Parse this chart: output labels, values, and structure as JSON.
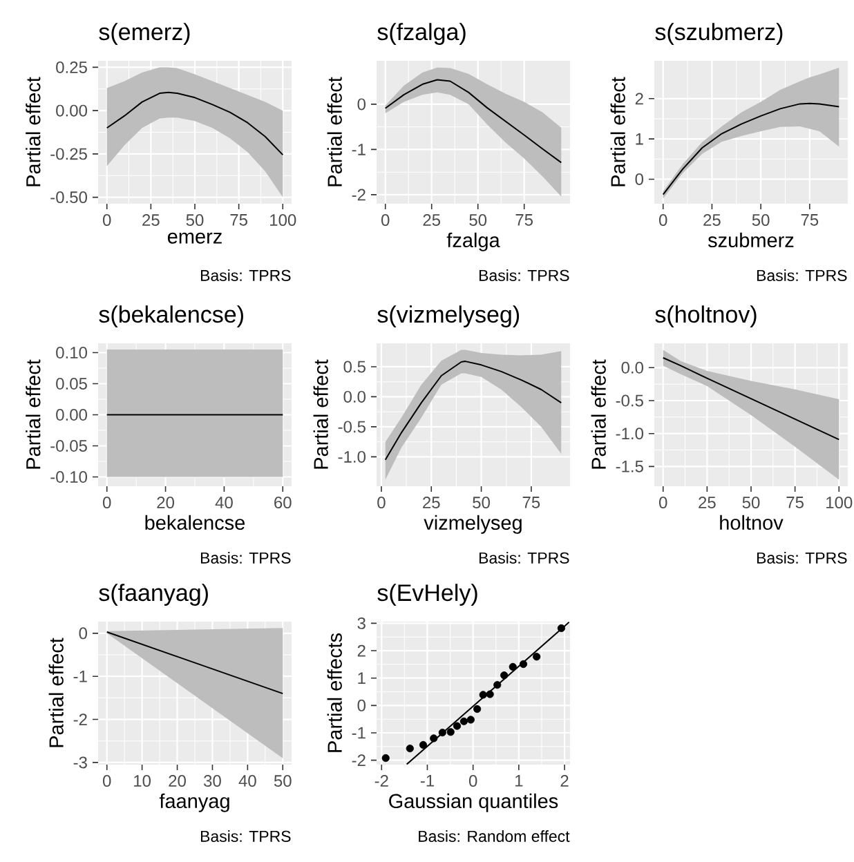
{
  "chart_data": [
    {
      "type": "line",
      "title": "s(emerz)",
      "xlabel": "emerz",
      "ylabel": "Partial effect",
      "annotations": [
        "Basis: TPRS"
      ],
      "xlim": [
        -5,
        105
      ],
      "ylim": [
        -0.5375,
        0.2875
      ],
      "xticks": [
        0,
        25,
        50,
        75,
        100
      ],
      "yticks": [
        {
          "value": -0.5,
          "label": "-0.50"
        },
        -0.25,
        {
          "value": 0,
          "label": "0.00"
        },
        0.25
      ],
      "grid": true,
      "series": [
        {
          "color": "#000000",
          "x": [
            0,
            10,
            20,
            30,
            35,
            40,
            50,
            60,
            70,
            80,
            90,
            100
          ],
          "values": [
            -0.1,
            -0.03,
            0.05,
            0.1,
            0.105,
            0.1,
            0.075,
            0.035,
            -0.01,
            -0.07,
            -0.15,
            -0.255
          ],
          "upper": [
            0.13,
            0.17,
            0.22,
            0.25,
            0.25,
            0.245,
            0.21,
            0.17,
            0.13,
            0.09,
            0.05,
            0.0
          ],
          "lower": [
            -0.32,
            -0.2,
            -0.1,
            -0.045,
            -0.04,
            -0.04,
            -0.06,
            -0.1,
            -0.16,
            -0.24,
            -0.35,
            -0.5
          ]
        }
      ]
    },
    {
      "type": "line",
      "title": "s(fzalga)",
      "xlabel": "fzalga",
      "ylabel": "Partial effect",
      "annotations": [
        "Basis: TPRS"
      ],
      "xlim": [
        -4.75,
        99.75
      ],
      "ylim": [
        -2.2,
        0.96
      ],
      "xticks": [
        0,
        25,
        50,
        75
      ],
      "yticks": [
        -2,
        -1,
        0
      ],
      "grid": true,
      "series": [
        {
          "color": "#000000",
          "x": [
            0,
            10,
            20,
            28,
            35,
            45,
            55,
            65,
            75,
            85,
            95
          ],
          "values": [
            -0.09,
            0.21,
            0.44,
            0.54,
            0.51,
            0.26,
            -0.08,
            -0.38,
            -0.68,
            -0.99,
            -1.29
          ],
          "upper": [
            -0.03,
            0.41,
            0.7,
            0.81,
            0.8,
            0.67,
            0.44,
            0.23,
            0.05,
            -0.18,
            -0.52
          ],
          "lower": [
            -0.2,
            0.05,
            0.21,
            0.26,
            0.21,
            0.0,
            -0.45,
            -0.85,
            -1.2,
            -1.6,
            -2.04
          ]
        }
      ]
    },
    {
      "type": "line",
      "title": "s(szubmerz)",
      "xlabel": "szubmerz",
      "ylabel": "Partial effect",
      "annotations": [
        "Basis: TPRS"
      ],
      "xlim": [
        -4.5,
        94.5
      ],
      "ylim": [
        -0.61,
        2.94
      ],
      "xticks": [
        0,
        25,
        50,
        75
      ],
      "yticks": [
        0,
        1,
        2
      ],
      "grid": true,
      "series": [
        {
          "color": "#000000",
          "x": [
            0,
            10,
            20,
            30,
            40,
            50,
            60,
            70,
            75,
            80,
            90
          ],
          "values": [
            -0.38,
            0.25,
            0.78,
            1.13,
            1.37,
            1.57,
            1.75,
            1.87,
            1.88,
            1.87,
            1.8
          ],
          "upper": [
            -0.3,
            0.37,
            0.92,
            1.31,
            1.66,
            1.92,
            2.22,
            2.43,
            2.53,
            2.6,
            2.77
          ],
          "lower": [
            -0.48,
            0.15,
            0.63,
            0.93,
            1.07,
            1.19,
            1.3,
            1.31,
            1.25,
            1.19,
            0.81
          ]
        }
      ]
    },
    {
      "type": "line",
      "title": "s(bekalencse)",
      "xlabel": "bekalencse",
      "ylabel": "Partial effect",
      "annotations": [
        "Basis: TPRS"
      ],
      "xlim": [
        -3,
        63
      ],
      "ylim": [
        -0.115,
        0.115
      ],
      "xticks": [
        0,
        20,
        40,
        60
      ],
      "yticks": [
        {
          "value": -0.1,
          "label": "-0.10"
        },
        -0.05,
        {
          "value": 0,
          "label": "0.00"
        },
        0.05,
        {
          "value": 0.1,
          "label": "0.10"
        }
      ],
      "grid": true,
      "series": [
        {
          "color": "#000000",
          "x": [
            0,
            60
          ],
          "values": [
            0,
            0
          ],
          "upper": [
            0.105,
            0.105
          ],
          "lower": [
            -0.1,
            -0.1
          ]
        }
      ]
    },
    {
      "type": "line",
      "title": "s(vizmelyseg)",
      "xlabel": "vizmelyseg",
      "ylabel": "Partial effect",
      "annotations": [
        "Basis: TPRS"
      ],
      "xlim": [
        -2.4,
        94.4
      ],
      "ylim": [
        -1.49,
        0.89
      ],
      "xticks": [
        0,
        25,
        50,
        75
      ],
      "yticks": [
        {
          "value": -1,
          "label": "-1.0"
        },
        -0.5,
        {
          "value": 0,
          "label": "0.0"
        },
        0.5
      ],
      "grid": true,
      "series": [
        {
          "color": "#000000",
          "x": [
            2,
            10,
            20,
            30,
            40,
            42,
            50,
            60,
            70,
            80,
            90
          ],
          "values": [
            -1.05,
            -0.6,
            -0.1,
            0.35,
            0.58,
            0.59,
            0.53,
            0.42,
            0.28,
            0.12,
            -0.1
          ],
          "upper": [
            -0.75,
            -0.35,
            0.2,
            0.6,
            0.78,
            0.78,
            0.73,
            0.7,
            0.69,
            0.7,
            0.76
          ],
          "lower": [
            -1.38,
            -0.85,
            -0.35,
            0.2,
            0.39,
            0.39,
            0.33,
            0.12,
            -0.17,
            -0.5,
            -0.95
          ]
        }
      ]
    },
    {
      "type": "line",
      "title": "s(holtnov)",
      "xlabel": "holtnov",
      "ylabel": "Partial effect",
      "annotations": [
        "Basis: TPRS"
      ],
      "xlim": [
        -5,
        105
      ],
      "ylim": [
        -1.8,
        0.37
      ],
      "xticks": [
        0,
        25,
        50,
        75,
        100
      ],
      "yticks": [
        -1.5,
        {
          "value": -1,
          "label": "-1.0"
        },
        -0.5,
        {
          "value": 0,
          "label": "0.0"
        }
      ],
      "grid": true,
      "series": [
        {
          "color": "#000000",
          "x": [
            0,
            10,
            25,
            50,
            75,
            100
          ],
          "values": [
            0.15,
            0.03,
            -0.16,
            -0.47,
            -0.78,
            -1.09
          ],
          "upper": [
            0.27,
            0.1,
            -0.05,
            -0.2,
            -0.33,
            -0.48
          ],
          "lower": [
            0.03,
            -0.1,
            -0.28,
            -0.72,
            -1.2,
            -1.7
          ]
        }
      ]
    },
    {
      "type": "line",
      "title": "s(faanyag)",
      "xlabel": "faanyag",
      "ylabel": "Partial effect",
      "annotations": [
        "Basis: TPRS"
      ],
      "xlim": [
        -2.5,
        52.5
      ],
      "ylim": [
        -3.05,
        0.27
      ],
      "xticks": [
        0,
        10,
        20,
        30,
        40,
        50
      ],
      "yticks": [
        -3,
        -2,
        -1,
        0
      ],
      "grid": true,
      "series": [
        {
          "color": "#000000",
          "x": [
            0,
            50
          ],
          "values": [
            0.03,
            -1.4
          ],
          "upper": [
            0.05,
            0.12
          ],
          "lower": [
            0.0,
            -2.9
          ]
        }
      ]
    },
    {
      "type": "scatter",
      "title": "s(EvHely)",
      "xlabel": "Gaussian quantiles",
      "ylabel": "Partial effects",
      "annotations": [
        "Basis: Random effect"
      ],
      "xlim": [
        -2.11,
        2.12
      ],
      "ylim": [
        -2.16,
        3.06
      ],
      "xticks": [
        -2,
        -1,
        0,
        1,
        2
      ],
      "yticks": [
        -2,
        -1,
        0,
        1,
        2,
        3
      ],
      "grid": true,
      "series": [
        {
          "color": "#000000",
          "marker": "circle",
          "x": [
            -1.91,
            -1.38,
            -1.09,
            -0.86,
            -0.67,
            -0.49,
            -0.35,
            -0.2,
            -0.05,
            0.09,
            0.22,
            0.37,
            0.53,
            0.68,
            0.87,
            1.1,
            1.39,
            1.93
          ],
          "values": [
            -1.92,
            -1.57,
            -1.44,
            -1.2,
            -0.99,
            -0.97,
            -0.75,
            -0.58,
            -0.52,
            -0.13,
            0.39,
            0.41,
            0.75,
            1.1,
            1.41,
            1.51,
            1.78,
            2.82
          ]
        },
        {
          "type": "line",
          "color": "#000000",
          "x": [
            -1.45,
            2.1
          ],
          "values": [
            -2.15,
            3.04
          ]
        }
      ]
    }
  ]
}
